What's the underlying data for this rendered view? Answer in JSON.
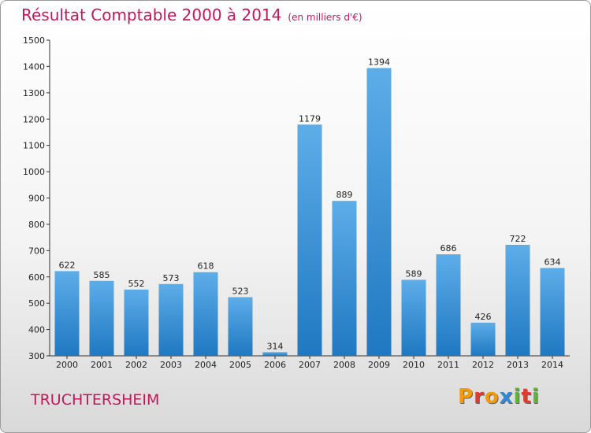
{
  "header": {
    "title": "Résultat Comptable 2000 à 2014",
    "subtitle": "(en milliers d'€)"
  },
  "footer": {
    "commune": "TRUCHTERSHEIM",
    "logo": [
      "P",
      "r",
      "o",
      "x",
      "i",
      "t",
      "i"
    ]
  },
  "colors": {
    "title": "#c2185b",
    "bar_top": "#5dade8",
    "bar_bottom": "#1f78c1",
    "logo": [
      "#f59b00",
      "#e03b2e",
      "#f59b00",
      "#2e8bd9",
      "#5cb82e",
      "#e03b2e",
      "#5cb82e"
    ]
  },
  "chart_data": {
    "type": "bar",
    "title": "Résultat Comptable 2000 à 2014",
    "subtitle": "(en milliers d'€)",
    "categories": [
      "2000",
      "2001",
      "2002",
      "2003",
      "2004",
      "2005",
      "2006",
      "2007",
      "2008",
      "2009",
      "2010",
      "2011",
      "2012",
      "2013",
      "2014"
    ],
    "values": [
      622,
      585,
      552,
      573,
      618,
      523,
      314,
      1179,
      889,
      1394,
      589,
      686,
      426,
      722,
      634
    ],
    "data_labels": [
      "622",
      "585",
      "552",
      "573",
      "618",
      "523",
      "314",
      "1179",
      "889",
      "1394",
      "589",
      "686",
      "426",
      "722",
      "634"
    ],
    "ylim": [
      300,
      1500
    ],
    "yticks": [
      300,
      400,
      500,
      600,
      700,
      800,
      900,
      1000,
      1100,
      1200,
      1300,
      1400,
      1500
    ],
    "xlabel": "",
    "ylabel": "",
    "grid": false,
    "legend": "none"
  }
}
